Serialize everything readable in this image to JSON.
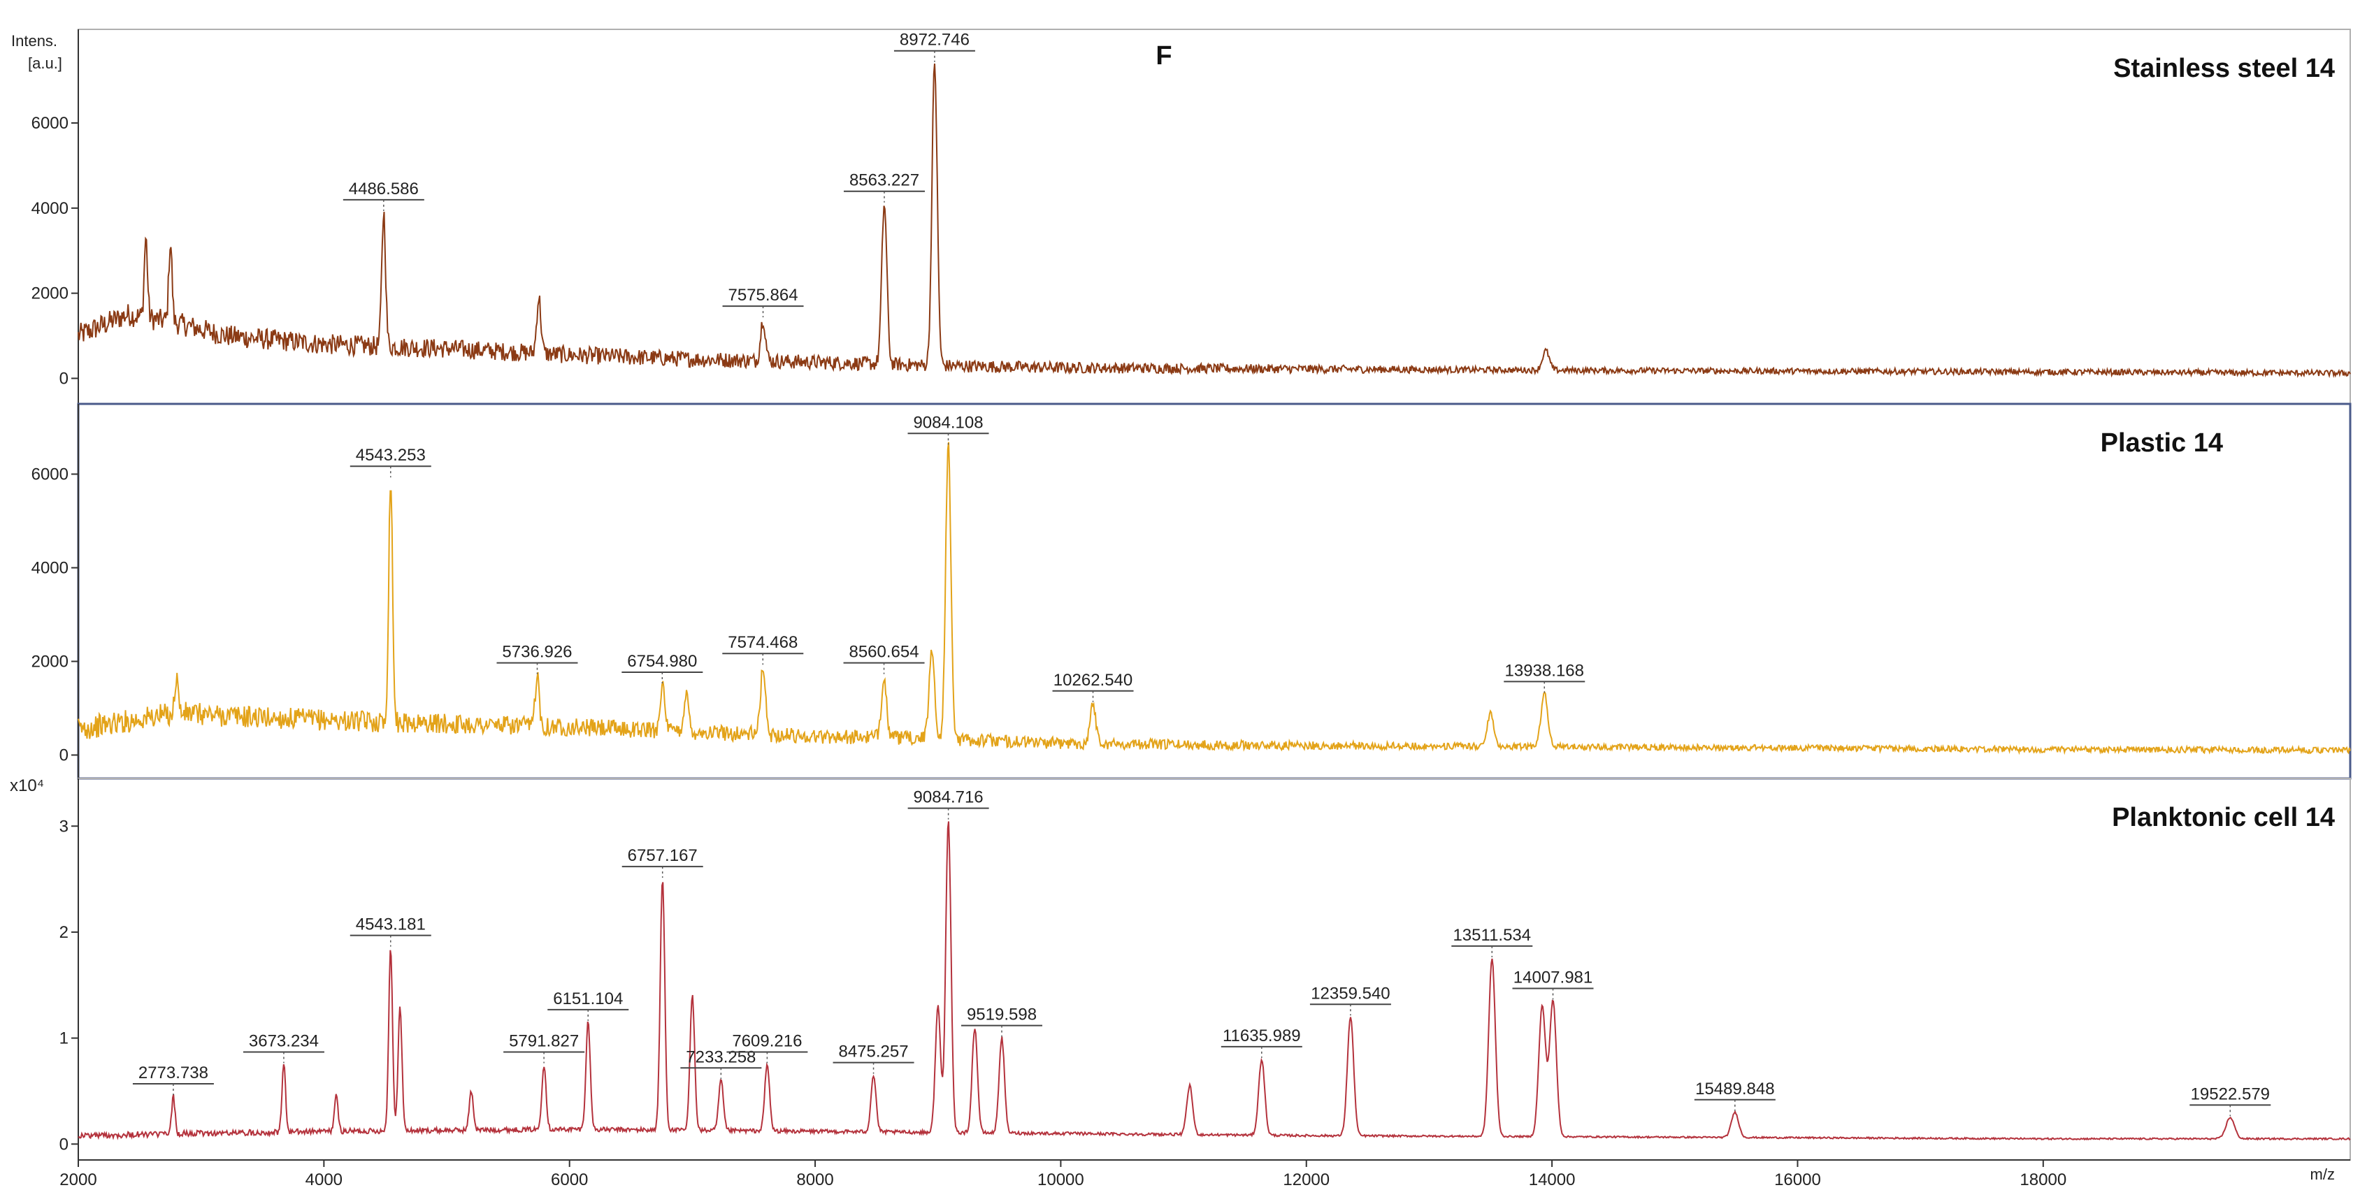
{
  "figure": {
    "panel_letter": "F",
    "y_axis_caption_line1": "Intens.",
    "y_axis_caption_line2": "[a.u.]",
    "x_axis_caption": "m/z"
  },
  "chart_data": [
    {
      "type": "line",
      "title": "Stainless steel 14",
      "color": "#8b3a14",
      "xlim": [
        2000,
        20500
      ],
      "ylim": [
        -600,
        8200
      ],
      "yticks": [
        0,
        2000,
        4000,
        6000
      ],
      "ytick_labels": [
        "0",
        "2000",
        "4000",
        "6000"
      ],
      "baseline": [
        [
          2000,
          1000
        ],
        [
          2400,
          1500
        ],
        [
          2800,
          1300
        ],
        [
          3200,
          1000
        ],
        [
          4000,
          800
        ],
        [
          5000,
          700
        ],
        [
          6000,
          550
        ],
        [
          7000,
          450
        ],
        [
          8000,
          380
        ],
        [
          9000,
          300
        ],
        [
          10000,
          250
        ],
        [
          12000,
          220
        ],
        [
          14000,
          190
        ],
        [
          16000,
          170
        ],
        [
          18000,
          150
        ],
        [
          20500,
          120
        ]
      ],
      "noise": 280,
      "peaks": [
        {
          "x": 2550,
          "y": 3300
        },
        {
          "x": 2750,
          "y": 3200
        },
        {
          "x": 4486.586,
          "y": 3900,
          "label": "4486.586"
        },
        {
          "x": 5750,
          "y": 1900
        },
        {
          "x": 7575.864,
          "y": 1400,
          "label": "7575.864"
        },
        {
          "x": 8563.227,
          "y": 4100,
          "label": "8563.227"
        },
        {
          "x": 8972.746,
          "y": 7400,
          "label": "8972.746"
        },
        {
          "x": 13950,
          "y": 650
        }
      ]
    },
    {
      "type": "line",
      "title": "Plastic 14",
      "color": "#e3a319",
      "xlim": [
        2000,
        20500
      ],
      "ylim": [
        -500,
        7500
      ],
      "yticks": [
        0,
        2000,
        4000,
        6000
      ],
      "ytick_labels": [
        "0",
        "2000",
        "4000",
        "6000"
      ],
      "baseline": [
        [
          2000,
          550
        ],
        [
          2800,
          900
        ],
        [
          3500,
          800
        ],
        [
          4500,
          700
        ],
        [
          6000,
          600
        ],
        [
          7000,
          500
        ],
        [
          8000,
          400
        ],
        [
          9000,
          350
        ],
        [
          10000,
          250
        ],
        [
          12000,
          200
        ],
        [
          14000,
          180
        ],
        [
          16000,
          150
        ],
        [
          18000,
          120
        ],
        [
          20500,
          100
        ]
      ],
      "noise": 260,
      "peaks": [
        {
          "x": 2800,
          "y": 1700
        },
        {
          "x": 4543.253,
          "y": 5900,
          "label": "4543.253"
        },
        {
          "x": 5736.926,
          "y": 1700,
          "label": "5736.926"
        },
        {
          "x": 6754.98,
          "y": 1500,
          "label": "6754.980"
        },
        {
          "x": 6950,
          "y": 1300
        },
        {
          "x": 7574.468,
          "y": 1900,
          "label": "7574.468"
        },
        {
          "x": 8560.654,
          "y": 1700,
          "label": "8560.654"
        },
        {
          "x": 8950,
          "y": 2300
        },
        {
          "x": 9084.108,
          "y": 6600,
          "label": "9084.108"
        },
        {
          "x": 10262.54,
          "y": 1100,
          "label": "10262.540"
        },
        {
          "x": 13500,
          "y": 900
        },
        {
          "x": 13938.168,
          "y": 1300,
          "label": "13938.168"
        }
      ]
    },
    {
      "type": "line",
      "title": "Planktonic cell 14",
      "color": "#b4323c",
      "y_multiplier_label": "x10⁴",
      "xlim": [
        2000,
        20500
      ],
      "ylim": [
        -0.15,
        3.45
      ],
      "yticks": [
        0,
        1,
        2,
        3
      ],
      "ytick_labels": [
        "0",
        "1",
        "2",
        "3"
      ],
      "baseline": [
        [
          2000,
          0.08
        ],
        [
          3000,
          0.1
        ],
        [
          4000,
          0.12
        ],
        [
          6000,
          0.14
        ],
        [
          8000,
          0.12
        ],
        [
          10000,
          0.1
        ],
        [
          12000,
          0.08
        ],
        [
          14000,
          0.07
        ],
        [
          16000,
          0.06
        ],
        [
          18000,
          0.05
        ],
        [
          20500,
          0.05
        ]
      ],
      "noise": 0.03,
      "peaks": [
        {
          "x": 2773.738,
          "y": 0.45,
          "label": "2773.738"
        },
        {
          "x": 3673.234,
          "y": 0.75,
          "label": "3673.234"
        },
        {
          "x": 4100,
          "y": 0.45
        },
        {
          "x": 4543.181,
          "y": 1.85,
          "label": "4543.181"
        },
        {
          "x": 4620,
          "y": 1.3
        },
        {
          "x": 5200,
          "y": 0.5
        },
        {
          "x": 5791.827,
          "y": 0.75,
          "label": "5791.827"
        },
        {
          "x": 6151.104,
          "y": 1.15,
          "label": "6151.104"
        },
        {
          "x": 6757.167,
          "y": 2.5,
          "label": "6757.167"
        },
        {
          "x": 7000,
          "y": 1.4
        },
        {
          "x": 7233.258,
          "y": 0.6,
          "label": "7233.258"
        },
        {
          "x": 7609.216,
          "y": 0.75,
          "label": "7609.216"
        },
        {
          "x": 8475.257,
          "y": 0.65,
          "label": "8475.257"
        },
        {
          "x": 9000,
          "y": 1.3
        },
        {
          "x": 9084.716,
          "y": 3.05,
          "label": "9084.716"
        },
        {
          "x": 9300,
          "y": 1.1
        },
        {
          "x": 9519.598,
          "y": 1.0,
          "label": "9519.598"
        },
        {
          "x": 11050,
          "y": 0.55
        },
        {
          "x": 11635.989,
          "y": 0.8,
          "label": "11635.989"
        },
        {
          "x": 12359.54,
          "y": 1.2,
          "label": "12359.540"
        },
        {
          "x": 13511.534,
          "y": 1.75,
          "label": "13511.534"
        },
        {
          "x": 13920,
          "y": 1.3
        },
        {
          "x": 14007.981,
          "y": 1.35,
          "label": "14007.981"
        },
        {
          "x": 15489.848,
          "y": 0.3,
          "label": "15489.848"
        },
        {
          "x": 19522.579,
          "y": 0.25,
          "label": "19522.579"
        }
      ]
    }
  ],
  "x_axis": {
    "ticks": [
      2000,
      4000,
      6000,
      8000,
      10000,
      12000,
      14000,
      16000,
      18000
    ],
    "tick_labels": [
      "2000",
      "4000",
      "6000",
      "8000",
      "10000",
      "12000",
      "14000",
      "16000",
      "18000"
    ]
  }
}
